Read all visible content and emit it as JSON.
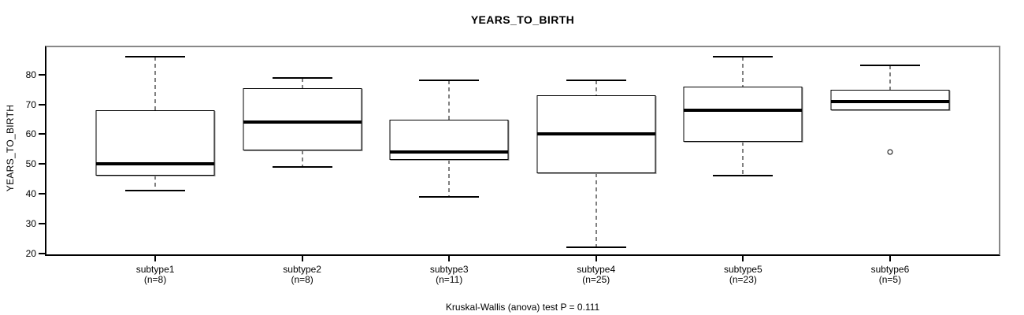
{
  "title": "YEARS_TO_BIRTH",
  "caption": "Kruskal-Wallis (anova) test P = 0.111",
  "colors": {
    "line": "#000000",
    "background": "#ffffff",
    "frame_shadow": "#888888"
  },
  "chart_data": {
    "type": "boxplot",
    "title": "YEARS_TO_BIRTH",
    "xlabel": "",
    "ylabel": "YEARS_TO_BIRTH",
    "footnote": "Kruskal-Wallis (anova) test P = 0.111",
    "grid": false,
    "legend": "none",
    "y_ticks": [
      20,
      30,
      40,
      50,
      60,
      70,
      80
    ],
    "y_domain": [
      19.7,
      89.2
    ],
    "groups": [
      {
        "label": "subtype1",
        "n_label": "(n=8)",
        "n": 8,
        "whisker_low": 41,
        "q1": 46,
        "median": 50,
        "q3": 68,
        "whisker_high": 86,
        "outliers": []
      },
      {
        "label": "subtype2",
        "n_label": "(n=8)",
        "n": 8,
        "whisker_low": 49,
        "q1": 54.5,
        "median": 64,
        "q3": 75.5,
        "whisker_high": 79,
        "outliers": []
      },
      {
        "label": "subtype3",
        "n_label": "(n=11)",
        "n": 11,
        "whisker_low": 39,
        "q1": 51.5,
        "median": 54,
        "q3": 65,
        "whisker_high": 78,
        "outliers": []
      },
      {
        "label": "subtype4",
        "n_label": "(n=25)",
        "n": 25,
        "whisker_low": 22,
        "q1": 47,
        "median": 60,
        "q3": 73,
        "whisker_high": 78,
        "outliers": []
      },
      {
        "label": "subtype5",
        "n_label": "(n=23)",
        "n": 23,
        "whisker_low": 46,
        "q1": 57.5,
        "median": 68,
        "q3": 76,
        "whisker_high": 86,
        "outliers": []
      },
      {
        "label": "subtype6",
        "n_label": "(n=5)",
        "n": 5,
        "whisker_low": 68,
        "q1": 68,
        "median": 71,
        "q3": 75,
        "whisker_high": 83,
        "outliers": [
          54
        ]
      }
    ]
  }
}
